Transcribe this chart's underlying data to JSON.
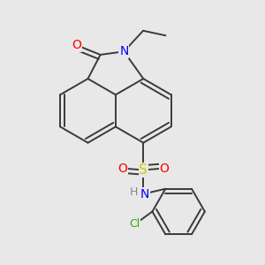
{
  "bg_color": "#e8e8e8",
  "bond_color": "#3a3a3a",
  "bond_width": 1.4,
  "dbo": 0.055,
  "atom_colors": {
    "O": "#ff0000",
    "N": "#0000ff",
    "S": "#cccc00",
    "Cl": "#33aa00",
    "C": "#3a3a3a"
  },
  "font_size": 9
}
